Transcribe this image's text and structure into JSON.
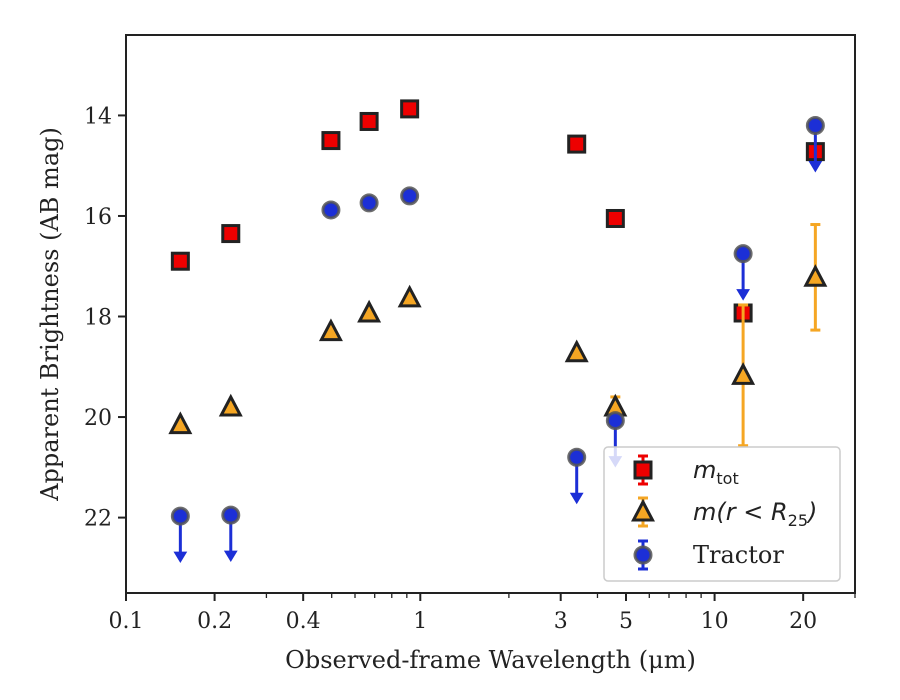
{
  "chart_data": {
    "type": "scatter",
    "xlabel": "Observed-frame Wavelength (μm)",
    "ylabel": "Apparent Brightness (AB mag)",
    "xscale": "log",
    "xlim": [
      0.1,
      30
    ],
    "ylim": [
      23.5,
      12.4
    ],
    "y_inverted": true,
    "grid": false,
    "legend_placement": "bottom-right",
    "x_ticks": [
      {
        "value": 0.1,
        "label": "0.1"
      },
      {
        "value": 0.2,
        "label": "0.2"
      },
      {
        "value": 0.4,
        "label": "0.4"
      },
      {
        "value": 1,
        "label": "1"
      },
      {
        "value": 3,
        "label": "3"
      },
      {
        "value": 5,
        "label": "5"
      },
      {
        "value": 10,
        "label": "10"
      },
      {
        "value": 20,
        "label": "20"
      }
    ],
    "y_ticks": [
      {
        "value": 14,
        "label": "14"
      },
      {
        "value": 16,
        "label": "16"
      },
      {
        "value": 18,
        "label": "18"
      },
      {
        "value": 20,
        "label": "20"
      },
      {
        "value": 22,
        "label": "22"
      }
    ],
    "series": [
      {
        "name": "m_tot",
        "legend_main": "m",
        "legend_sub": "tot",
        "marker": "square",
        "color": "#ee0000",
        "edge_color": "#222222",
        "points": [
          {
            "x": 0.153,
            "y": 16.9
          },
          {
            "x": 0.227,
            "y": 16.35
          },
          {
            "x": 0.497,
            "y": 14.5
          },
          {
            "x": 0.67,
            "y": 14.12
          },
          {
            "x": 0.92,
            "y": 13.87
          },
          {
            "x": 3.4,
            "y": 14.57
          },
          {
            "x": 4.6,
            "y": 16.05
          },
          {
            "x": 12.5,
            "y": 17.93
          },
          {
            "x": 22.0,
            "y": 14.72
          }
        ]
      },
      {
        "name": "m(r < R25)",
        "legend_main": "m(r < R",
        "legend_sub": "25",
        "legend_tail": ")",
        "marker": "triangle",
        "color": "#f5a623",
        "edge_color": "#222222",
        "points": [
          {
            "x": 0.153,
            "y": 20.15
          },
          {
            "x": 0.227,
            "y": 19.8
          },
          {
            "x": 0.497,
            "y": 18.3
          },
          {
            "x": 0.67,
            "y": 17.93
          },
          {
            "x": 0.92,
            "y": 17.63
          },
          {
            "x": 3.4,
            "y": 18.72
          },
          {
            "x": 4.6,
            "y": 19.8,
            "yerr": 0.2
          },
          {
            "x": 12.5,
            "y": 19.17,
            "yerr": 1.4
          },
          {
            "x": 22.0,
            "y": 17.22,
            "yerr": 1.05
          }
        ]
      },
      {
        "name": "Tractor",
        "marker": "circle",
        "color": "#1c2fd6",
        "edge_color": "#555555",
        "points": [
          {
            "x": 0.153,
            "y": 21.97,
            "upper_limit": true
          },
          {
            "x": 0.227,
            "y": 21.95,
            "upper_limit": true
          },
          {
            "x": 0.497,
            "y": 15.88
          },
          {
            "x": 0.67,
            "y": 15.74
          },
          {
            "x": 0.92,
            "y": 15.6
          },
          {
            "x": 3.4,
            "y": 20.8,
            "upper_limit": true
          },
          {
            "x": 4.6,
            "y": 20.07,
            "upper_limit": true
          },
          {
            "x": 12.5,
            "y": 16.75,
            "upper_limit": true
          },
          {
            "x": 22.0,
            "y": 14.2,
            "upper_limit": true
          }
        ]
      }
    ],
    "legend_order": [
      0,
      1,
      2
    ]
  }
}
